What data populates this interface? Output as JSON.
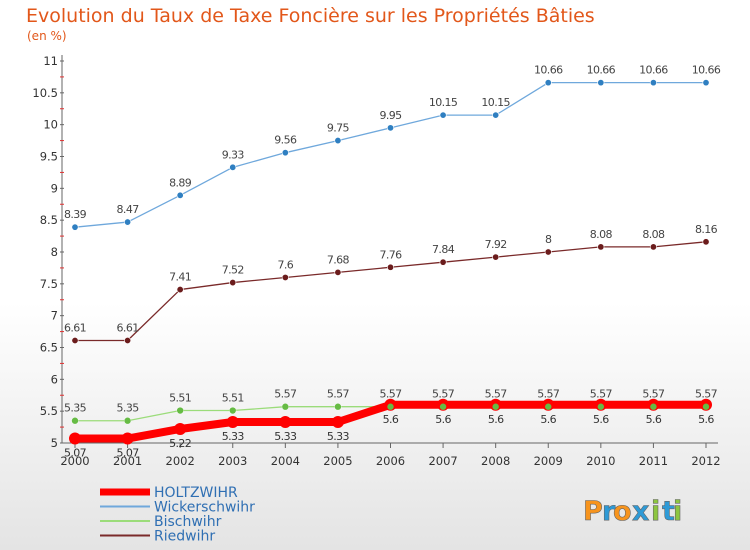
{
  "chart_data": {
    "type": "line",
    "title": "Evolution du Taux de Taxe Foncière sur les Propriétés Bâties",
    "subtitle": "(en %)",
    "x": [
      "2000",
      "2001",
      "2002",
      "2003",
      "2004",
      "2005",
      "2006",
      "2007",
      "2008",
      "2009",
      "2010",
      "2011",
      "2012"
    ],
    "yticks": [
      "5",
      "5.5",
      "6",
      "6.5",
      "7",
      "7.5",
      "8",
      "8.5",
      "9",
      "9.5",
      "10",
      "10.5",
      "11"
    ],
    "ylim": [
      5,
      11
    ],
    "grid": false,
    "legend_position": "bottom-left",
    "series": [
      {
        "name": "Wickerschwihr",
        "color": "#6fa8dc",
        "marker": "#2f7fc1",
        "values": [
          8.39,
          8.47,
          8.89,
          9.33,
          9.56,
          9.75,
          9.95,
          10.15,
          10.15,
          10.66,
          10.66,
          10.66,
          10.66
        ],
        "labels": [
          "8.39",
          "8.47",
          "8.89",
          "9.33",
          "9.56",
          "9.75",
          "9.95",
          "10.15",
          "10.15",
          "10.66",
          "10.66",
          "10.66",
          "10.66"
        ]
      },
      {
        "name": "Riedwihr",
        "color": "#7a2a2a",
        "marker": "#6b1c1c",
        "values": [
          6.61,
          6.61,
          7.41,
          7.52,
          7.6,
          7.68,
          7.76,
          7.84,
          7.92,
          8,
          8.08,
          8.08,
          8.16
        ],
        "labels": [
          "6.61",
          "6.61",
          "7.41",
          "7.52",
          "7.6",
          "7.68",
          "7.76",
          "7.84",
          "7.92",
          "8",
          "8.08",
          "8.08",
          "8.16"
        ]
      },
      {
        "name": "Bischwihr",
        "color": "#9bdc7a",
        "marker": "#66bb44",
        "values": [
          5.35,
          5.35,
          5.51,
          5.51,
          5.57,
          5.57,
          5.57,
          5.57,
          5.57,
          5.57,
          5.57,
          5.57,
          5.57
        ],
        "labels": [
          "5.35",
          "5.35",
          "5.51",
          "5.51",
          "5.57",
          "5.57",
          "5.57",
          "5.57",
          "5.57",
          "5.57",
          "5.57",
          "5.57",
          "5.57"
        ]
      },
      {
        "name": "HOLTZWIHR",
        "color": "#ff0000",
        "marker": "#ff0000",
        "values": [
          5.07,
          5.07,
          5.22,
          5.33,
          5.33,
          5.33,
          5.6,
          5.6,
          5.6,
          5.6,
          5.6,
          5.6,
          5.6
        ],
        "labels": [
          "5.07",
          "5.07",
          "5.22",
          "5.33",
          "5.33",
          "5.33",
          "5.6",
          "5.6",
          "5.6",
          "5.6",
          "5.6",
          "5.6",
          "5.6"
        ]
      }
    ]
  },
  "legend_order": [
    "HOLTZWIHR",
    "Wickerschwihr",
    "Bischwihr",
    "Riedwihr"
  ],
  "logo": {
    "letters": [
      "P",
      "r",
      "o",
      "x",
      "i",
      "t",
      "i"
    ],
    "colors": [
      "#f7941d",
      "#2e9ad6",
      "#f7941d",
      "#2e9ad6",
      "#8dc63f",
      "#2e9ad6",
      "#8dc63f"
    ]
  }
}
